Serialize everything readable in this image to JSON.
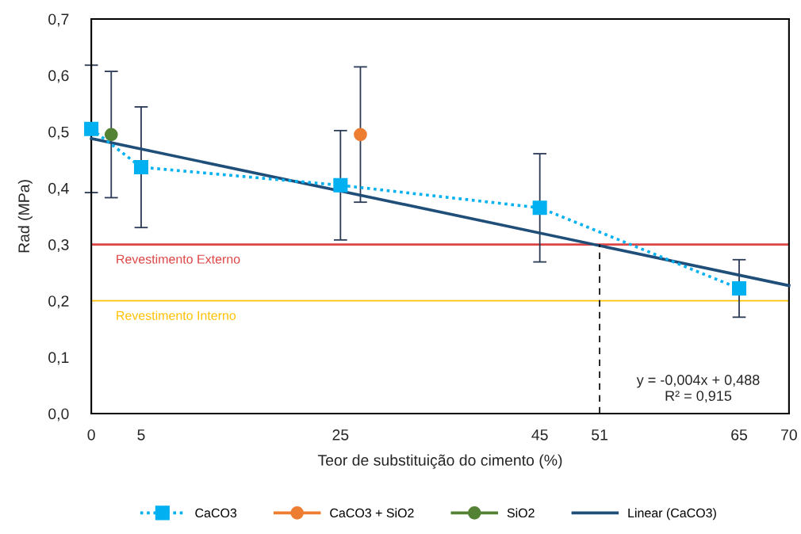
{
  "chart_data": {
    "type": "line",
    "xlabel": "Teor de substituição do cimento (%)",
    "ylabel": "Rad (MPa)",
    "xlim": [
      0,
      70
    ],
    "ylim": [
      0,
      0.7
    ],
    "xticks": [
      0,
      5,
      25,
      45,
      51,
      65,
      70
    ],
    "yticks": [
      {
        "value": 0,
        "label": "0,0"
      },
      {
        "value": 0.1,
        "label": "0,1"
      },
      {
        "value": 0.2,
        "label": "0,2"
      },
      {
        "value": 0.3,
        "label": "0,3"
      },
      {
        "value": 0.4,
        "label": "0,4"
      },
      {
        "value": 0.5,
        "label": "0,5"
      },
      {
        "value": 0.6,
        "label": "0,6"
      },
      {
        "value": 0.7,
        "label": "0,7"
      }
    ],
    "series": [
      {
        "name": "CaCO3",
        "color": "#00b0f0",
        "x": [
          0,
          5,
          25,
          45,
          65
        ],
        "values": [
          0.505,
          0.437,
          0.405,
          0.365,
          0.222
        ],
        "errors": [
          0.113,
          0.107,
          0.097,
          0.096,
          0.051
        ],
        "marker": "square",
        "line_style": "dotted"
      },
      {
        "name": "CaCO3 + SiO2",
        "color": "#ed7d31",
        "x": [
          27
        ],
        "values": [
          0.495
        ],
        "errors": [
          0.12
        ],
        "marker": "circle",
        "line_style": "solid"
      },
      {
        "name": "SiO2",
        "color": "#548235",
        "x": [
          2
        ],
        "values": [
          0.495
        ],
        "errors": [
          0.112
        ],
        "marker": "circle",
        "line_style": "solid"
      },
      {
        "name": "Linear (CaCO3)",
        "color": "#1f4e79",
        "x": [
          0,
          70
        ],
        "values": [
          0.488,
          0.227
        ],
        "marker": "none",
        "line_style": "solid"
      },
      {
        "color": "#000000",
        "x": [
          51,
          51
        ],
        "values": [
          0,
          0.3
        ],
        "marker": "none",
        "line_style": "dashed"
      }
    ],
    "ref_lines": [
      {
        "axis": "y",
        "value": 0.3,
        "label": "Revestimento Externo",
        "color": "#dd4444"
      },
      {
        "axis": "y",
        "value": 0.2,
        "label": "Revestimento Interno",
        "color": "#ffc000"
      }
    ],
    "annotations": [
      "y = -0,004x + 0,488\nR² = 0,915"
    ],
    "legend": "bottom"
  }
}
